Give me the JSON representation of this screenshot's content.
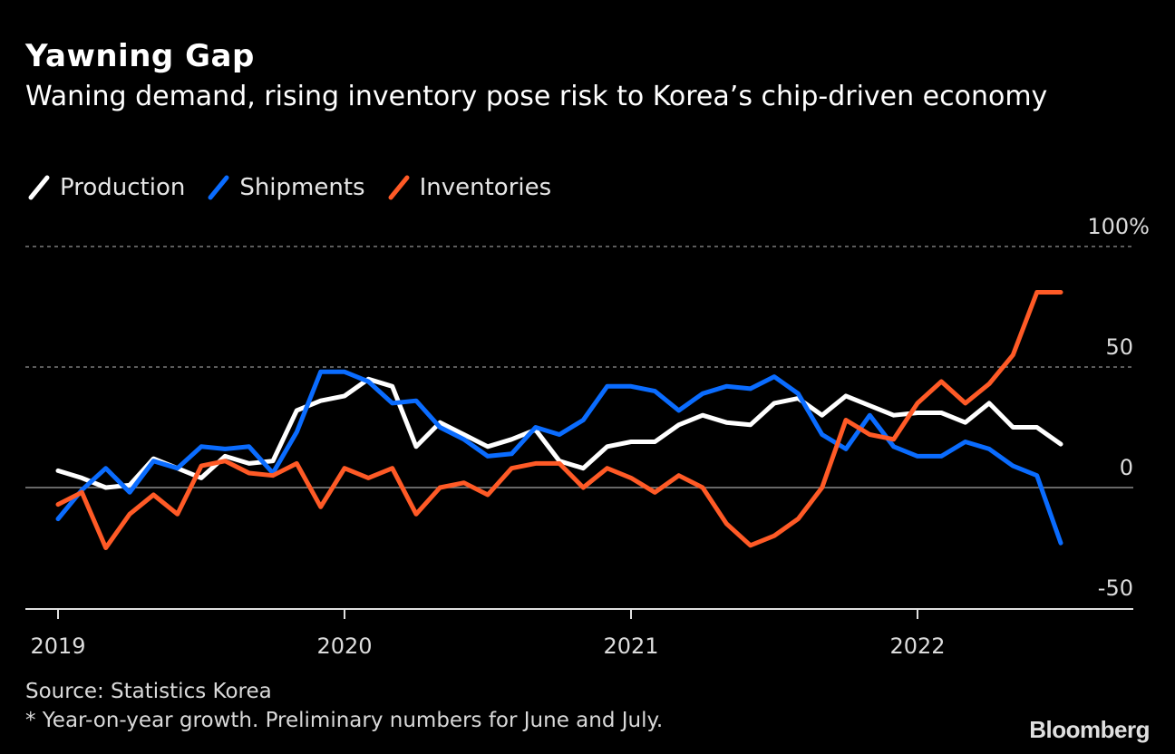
{
  "header": {
    "title": "Yawning Gap",
    "subtitle": "Waning demand, rising inventory pose risk to Korea’s chip-driven economy"
  },
  "legend": [
    {
      "label": "Production",
      "color": "#ffffff"
    },
    {
      "label": "Shipments",
      "color": "#0a6cff"
    },
    {
      "label": "Inventories",
      "color": "#ff5a26"
    }
  ],
  "footer": {
    "source": "Source: Statistics Korea",
    "note": "* Year-on-year growth. Preliminary numbers for June and July.",
    "brand": "Bloomberg"
  },
  "chart_data": {
    "type": "line",
    "title": "Yawning Gap",
    "subtitle": "Waning demand, rising inventory pose risk to Korea’s chip-driven economy",
    "xlabel": "",
    "ylabel": "Year-on-year growth (%)",
    "x_start": "2019-01",
    "x_end": "2022-07",
    "frequency": "monthly",
    "x_ticks": [
      "2019",
      "2020",
      "2021",
      "2022"
    ],
    "y_ticks": [
      {
        "value": 100,
        "label": "100%"
      },
      {
        "value": 50,
        "label": "50"
      },
      {
        "value": 0,
        "label": "0"
      },
      {
        "value": -50,
        "label": "-50"
      }
    ],
    "ylim": [
      -50,
      100
    ],
    "grid": "horizontal dotted at 50 and 100; solid zero line",
    "legend_position": "top-left",
    "series": [
      {
        "name": "Production",
        "color": "#ffffff",
        "values": [
          7,
          4,
          0,
          1,
          12,
          8,
          4,
          13,
          10,
          11,
          32,
          36,
          38,
          45,
          42,
          17,
          27,
          22,
          17,
          20,
          24,
          11,
          8,
          17,
          19,
          19,
          26,
          30,
          27,
          26,
          35,
          37,
          30,
          38,
          34,
          30,
          31,
          31,
          27,
          35,
          25,
          25,
          18
        ]
      },
      {
        "name": "Shipments",
        "color": "#0a6cff",
        "values": [
          -13,
          -1,
          8,
          -2,
          11,
          8,
          17,
          16,
          17,
          6,
          23,
          48,
          48,
          44,
          35,
          36,
          25,
          20,
          13,
          14,
          25,
          22,
          28,
          42,
          42,
          40,
          32,
          39,
          42,
          41,
          46,
          39,
          22,
          16,
          30,
          17,
          13,
          13,
          19,
          16,
          9,
          5,
          -23
        ]
      },
      {
        "name": "Inventories",
        "color": "#ff5a26",
        "values": [
          -7,
          -2,
          -25,
          -11,
          -3,
          -11,
          9,
          11,
          6,
          5,
          10,
          -8,
          8,
          4,
          8,
          -11,
          0,
          2,
          -3,
          8,
          10,
          10,
          0,
          8,
          4,
          -2,
          5,
          0,
          -15,
          -24,
          -20,
          -13,
          0,
          28,
          22,
          20,
          35,
          44,
          35,
          43,
          55,
          81,
          81
        ]
      }
    ]
  }
}
